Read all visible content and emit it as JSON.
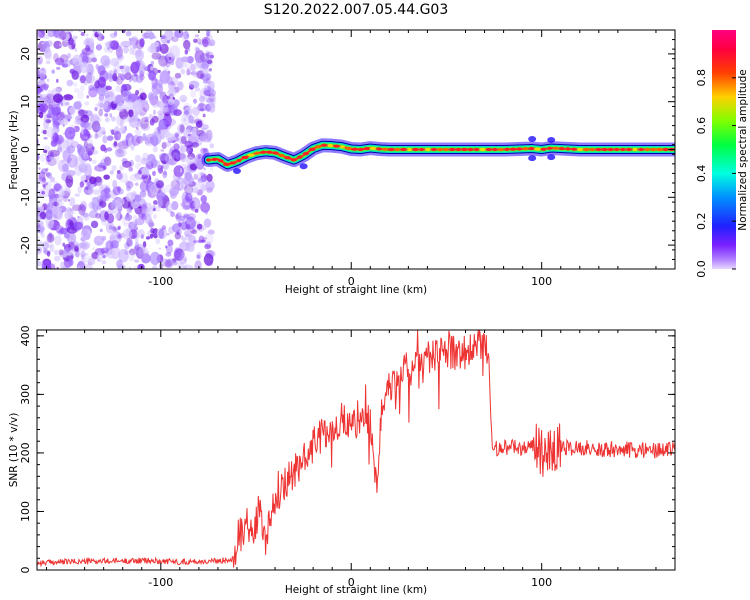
{
  "title": "S120.2022.007.05.44.G03",
  "colors": {
    "snr_line": "#ee3333",
    "track_outline": "#0000cc",
    "noise": "#8a2be2"
  },
  "colorbar": {
    "label": "Normalized spectral amplitude",
    "ticks": [
      0.0,
      0.2,
      0.4,
      0.6,
      0.8
    ],
    "tick_labels": [
      "0.0",
      "0.2",
      "0.4",
      "0.6",
      "0.8"
    ],
    "range": [
      0,
      1
    ],
    "colormap": "gist_rainbow-like (violet→blue→cyan→green→yellow→red→magenta)"
  },
  "chart_data": [
    {
      "type": "heatmap",
      "xlabel": "Height of straight line (km)",
      "ylabel": "Frequency (Hz)",
      "xlim": [
        -165,
        170
      ],
      "ylim": [
        -25,
        25
      ],
      "xticks": [
        -100,
        0,
        100
      ],
      "xtick_labels": [
        "-100",
        "0",
        "100"
      ],
      "yticks": [
        -20,
        -10,
        0,
        10,
        20
      ],
      "ytick_labels": [
        "-20",
        "-10",
        "0",
        "10",
        "20"
      ],
      "noise_region_x": [
        -165,
        -75
      ],
      "track": {
        "x": [
          -75,
          -70,
          -65,
          -60,
          -55,
          -50,
          -45,
          -40,
          -35,
          -30,
          -25,
          -20,
          -15,
          -10,
          -5,
          0,
          5,
          10,
          15,
          20,
          40,
          60,
          80,
          95,
          100,
          105,
          120,
          140,
          170
        ],
        "y": [
          -2.2,
          -2.0,
          -3.2,
          -2.5,
          -1.5,
          -0.8,
          -0.5,
          -0.7,
          -1.5,
          -2.2,
          -1.2,
          0.2,
          0.9,
          0.8,
          0.6,
          0.1,
          0.0,
          0.3,
          0.1,
          0.0,
          0.0,
          0.0,
          0.0,
          0.2,
          0.0,
          0.3,
          0.0,
          0.0,
          0.0
        ]
      }
    },
    {
      "type": "line",
      "xlabel": "Height of straight line (km)",
      "ylabel": "SNR (10 * v/v)",
      "xlim": [
        -165,
        170
      ],
      "ylim": [
        0,
        410
      ],
      "xticks": [
        -100,
        0,
        100
      ],
      "xtick_labels": [
        "-100",
        "0",
        "100"
      ],
      "yticks": [
        0,
        100,
        200,
        300,
        400
      ],
      "ytick_labels": [
        "0",
        "100",
        "200",
        "300",
        "400"
      ],
      "series": [
        {
          "x": [
            -165,
            -150,
            -130,
            -110,
            -90,
            -70,
            -62,
            -58,
            -55,
            -52,
            -48,
            -45,
            -40,
            -35,
            -30,
            -25,
            -20,
            -15,
            -10,
            -5,
            0,
            5,
            10,
            12,
            14,
            16,
            20,
            25,
            30,
            35,
            40,
            45,
            50,
            55,
            60,
            65,
            70,
            72,
            74,
            80,
            90,
            95,
            100,
            103,
            106,
            110,
            120,
            130,
            140,
            150,
            160,
            170
          ],
          "y": [
            12,
            14,
            15,
            16,
            14,
            15,
            20,
            75,
            90,
            60,
            110,
            55,
            120,
            145,
            170,
            180,
            215,
            230,
            240,
            245,
            250,
            265,
            260,
            155,
            140,
            290,
            310,
            330,
            350,
            360,
            365,
            370,
            375,
            370,
            372,
            375,
            378,
            380,
            205,
            210,
            208,
            212,
            205,
            195,
            215,
            208,
            210,
            205,
            207,
            205,
            203,
            205
          ]
        }
      ]
    }
  ]
}
